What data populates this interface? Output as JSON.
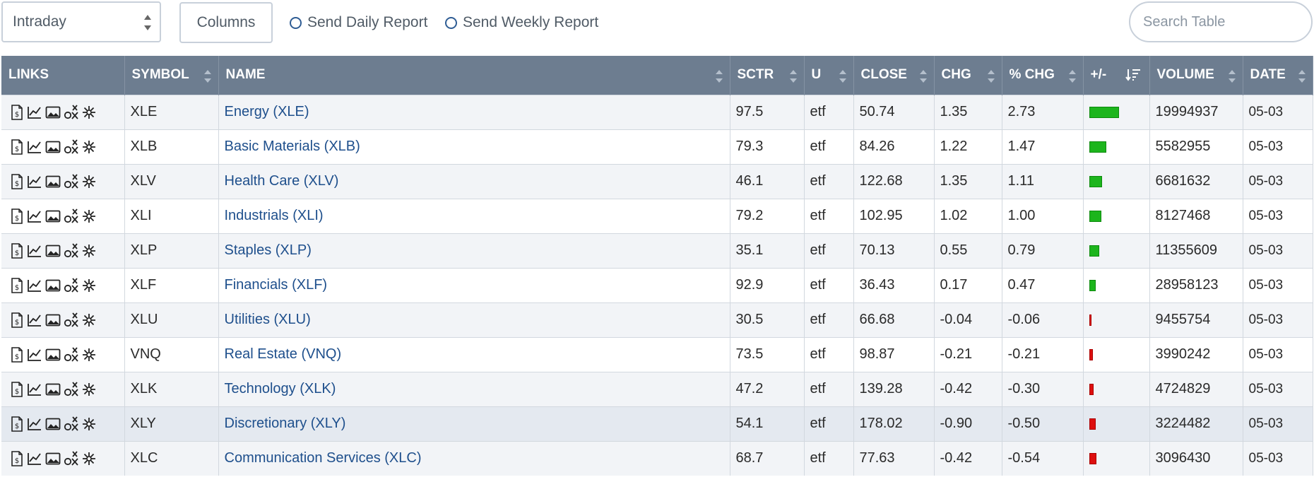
{
  "toolbar": {
    "period_select": "Intraday",
    "columns_button": "Columns",
    "daily_report": "Send Daily Report",
    "weekly_report": "Send Weekly Report",
    "search_placeholder": "Search Table"
  },
  "columns": {
    "links": "LINKS",
    "symbol": "SYMBOL",
    "name": "NAME",
    "sctr": "SCTR",
    "u": "U",
    "close": "CLOSE",
    "chg": "CHG",
    "pct_chg": "% CHG",
    "plusminus": "+/-",
    "volume": "VOLUME",
    "date": "DATE"
  },
  "colors": {
    "positive": "#1db51d",
    "negative": "#dd0f0f",
    "header_bg": "#6d7d90",
    "link": "#1e4f8c"
  },
  "rows": [
    {
      "symbol": "XLE",
      "name": "Energy (XLE)",
      "sctr": "97.5",
      "u": "etf",
      "close": "50.74",
      "chg": "1.35",
      "pct_chg": "2.73",
      "volume": "19994937",
      "date": "05-03"
    },
    {
      "symbol": "XLB",
      "name": "Basic Materials (XLB)",
      "sctr": "79.3",
      "u": "etf",
      "close": "84.26",
      "chg": "1.22",
      "pct_chg": "1.47",
      "volume": "5582955",
      "date": "05-03"
    },
    {
      "symbol": "XLV",
      "name": "Health Care (XLV)",
      "sctr": "46.1",
      "u": "etf",
      "close": "122.68",
      "chg": "1.35",
      "pct_chg": "1.11",
      "volume": "6681632",
      "date": "05-03"
    },
    {
      "symbol": "XLI",
      "name": "Industrials (XLI)",
      "sctr": "79.2",
      "u": "etf",
      "close": "102.95",
      "chg": "1.02",
      "pct_chg": "1.00",
      "volume": "8127468",
      "date": "05-03"
    },
    {
      "symbol": "XLP",
      "name": "Staples (XLP)",
      "sctr": "35.1",
      "u": "etf",
      "close": "70.13",
      "chg": "0.55",
      "pct_chg": "0.79",
      "volume": "11355609",
      "date": "05-03"
    },
    {
      "symbol": "XLF",
      "name": "Financials (XLF)",
      "sctr": "92.9",
      "u": "etf",
      "close": "36.43",
      "chg": "0.17",
      "pct_chg": "0.47",
      "volume": "28958123",
      "date": "05-03"
    },
    {
      "symbol": "XLU",
      "name": "Utilities (XLU)",
      "sctr": "30.5",
      "u": "etf",
      "close": "66.68",
      "chg": "-0.04",
      "pct_chg": "-0.06",
      "volume": "9455754",
      "date": "05-03"
    },
    {
      "symbol": "VNQ",
      "name": "Real Estate (VNQ)",
      "sctr": "73.5",
      "u": "etf",
      "close": "98.87",
      "chg": "-0.21",
      "pct_chg": "-0.21",
      "volume": "3990242",
      "date": "05-03"
    },
    {
      "symbol": "XLK",
      "name": "Technology (XLK)",
      "sctr": "47.2",
      "u": "etf",
      "close": "139.28",
      "chg": "-0.42",
      "pct_chg": "-0.30",
      "volume": "4724829",
      "date": "05-03"
    },
    {
      "symbol": "XLY",
      "name": "Discretionary (XLY)",
      "sctr": "54.1",
      "u": "etf",
      "close": "178.02",
      "chg": "-0.90",
      "pct_chg": "-0.50",
      "volume": "3224482",
      "date": "05-03"
    },
    {
      "symbol": "XLC",
      "name": "Communication Services (XLC)",
      "sctr": "68.7",
      "u": "etf",
      "close": "77.63",
      "chg": "-0.42",
      "pct_chg": "-0.54",
      "volume": "3096430",
      "date": "05-03"
    }
  ]
}
